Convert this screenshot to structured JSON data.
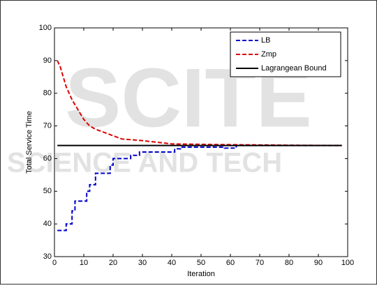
{
  "chart_data": {
    "type": "line",
    "xlabel": "Iteration",
    "ylabel": "Total Service Time",
    "xlim": [
      0,
      100
    ],
    "xticks": [
      0,
      10,
      20,
      30,
      40,
      50,
      60,
      70,
      80,
      90,
      100
    ],
    "ylim": [
      30,
      100
    ],
    "yticks": [
      30,
      40,
      50,
      60,
      70,
      80,
      90,
      100
    ],
    "legend": "top-right",
    "watermark": [
      "SCITE",
      "SCIENCE AND TECH"
    ],
    "series": [
      {
        "name": "LB",
        "color": "#0000cc",
        "dash": true,
        "x": [
          1,
          4,
          4,
          6,
          6,
          7,
          7,
          11,
          11,
          12,
          12,
          14,
          14,
          19,
          19,
          20,
          20,
          26,
          26,
          29,
          29,
          41,
          41,
          43,
          43,
          58,
          58,
          62,
          62,
          98
        ],
        "values": [
          38,
          38,
          40,
          40,
          44,
          44,
          47,
          47,
          50,
          50,
          52,
          52,
          55.5,
          55.5,
          58,
          58,
          60,
          60,
          61,
          61,
          62,
          62,
          63,
          63,
          63.5,
          63.5,
          63.2,
          63.2,
          64,
          64
        ]
      },
      {
        "name": "Zmp",
        "color": "#dd0000",
        "dash": true,
        "x": [
          1,
          2,
          3,
          4,
          5,
          6,
          8,
          10,
          12,
          14,
          17,
          20,
          23,
          30,
          35,
          40,
          55,
          80,
          98
        ],
        "values": [
          90,
          88,
          85,
          82,
          80,
          78,
          75,
          72,
          70,
          69,
          68,
          67,
          66,
          65.5,
          65,
          64.5,
          64.3,
          64.1,
          64
        ]
      },
      {
        "name": "Lagrangean Bound",
        "color": "#000000",
        "dash": false,
        "x": [
          1,
          98
        ],
        "values": [
          64,
          64
        ]
      }
    ]
  }
}
